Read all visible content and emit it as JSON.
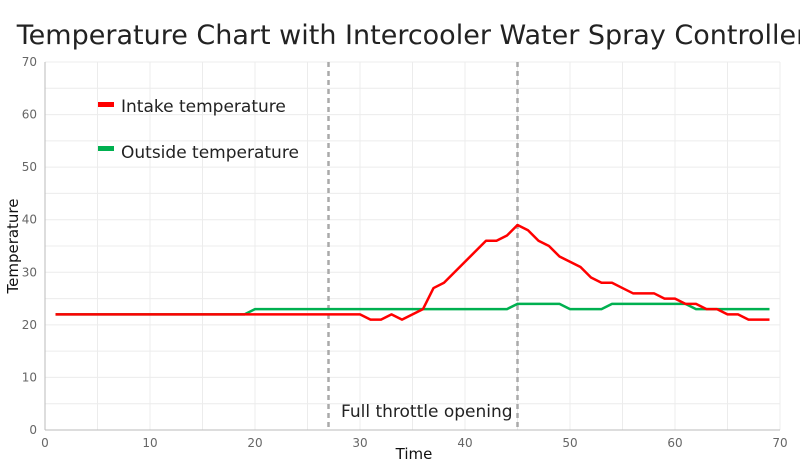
{
  "chart_data": {
    "type": "line",
    "title": "Temperature Chart with Intercooler Water Spray Controller",
    "xlabel": "Time",
    "ylabel": "Temperature",
    "xlim": [
      0,
      70
    ],
    "ylim": [
      0,
      70
    ],
    "xticks": [
      0,
      10,
      20,
      30,
      40,
      50,
      60,
      70
    ],
    "yticks": [
      0,
      10,
      20,
      30,
      40,
      50,
      60,
      70
    ],
    "grid": true,
    "legend_position": "top-left",
    "x": [
      1,
      2,
      3,
      4,
      5,
      6,
      7,
      8,
      9,
      10,
      11,
      12,
      13,
      14,
      15,
      16,
      17,
      18,
      19,
      20,
      21,
      22,
      23,
      24,
      25,
      26,
      27,
      28,
      29,
      30,
      31,
      32,
      33,
      34,
      35,
      36,
      37,
      38,
      39,
      40,
      41,
      42,
      43,
      44,
      45,
      46,
      47,
      48,
      49,
      50,
      51,
      52,
      53,
      54,
      55,
      56,
      57,
      58,
      59,
      60,
      61,
      62,
      63,
      64,
      65,
      66,
      67,
      68,
      69
    ],
    "series": [
      {
        "name": "Intake temperature",
        "color": "#ff0000",
        "values": [
          22,
          22,
          22,
          22,
          22,
          22,
          22,
          22,
          22,
          22,
          22,
          22,
          22,
          22,
          22,
          22,
          22,
          22,
          22,
          22,
          22,
          22,
          22,
          22,
          22,
          22,
          22,
          22,
          22,
          22,
          21,
          21,
          22,
          21,
          22,
          23,
          27,
          28,
          30,
          32,
          34,
          36,
          36,
          37,
          39,
          38,
          36,
          35,
          33,
          32,
          31,
          29,
          28,
          28,
          27,
          26,
          26,
          26,
          25,
          25,
          24,
          24,
          23,
          23,
          22,
          22,
          21,
          21,
          21
        ]
      },
      {
        "name": "Outside temperature",
        "color": "#00b050",
        "values": [
          22,
          22,
          22,
          22,
          22,
          22,
          22,
          22,
          22,
          22,
          22,
          22,
          22,
          22,
          22,
          22,
          22,
          22,
          22,
          23,
          23,
          23,
          23,
          23,
          23,
          23,
          23,
          23,
          23,
          23,
          23,
          23,
          23,
          23,
          23,
          23,
          23,
          23,
          23,
          23,
          23,
          23,
          23,
          23,
          24,
          24,
          24,
          24,
          24,
          23,
          23,
          23,
          23,
          24,
          24,
          24,
          24,
          24,
          24,
          24,
          24,
          23,
          23,
          23,
          23,
          23,
          23,
          23,
          23
        ]
      }
    ],
    "vlines": [
      27,
      45
    ],
    "annotation": "Full throttle opening"
  }
}
